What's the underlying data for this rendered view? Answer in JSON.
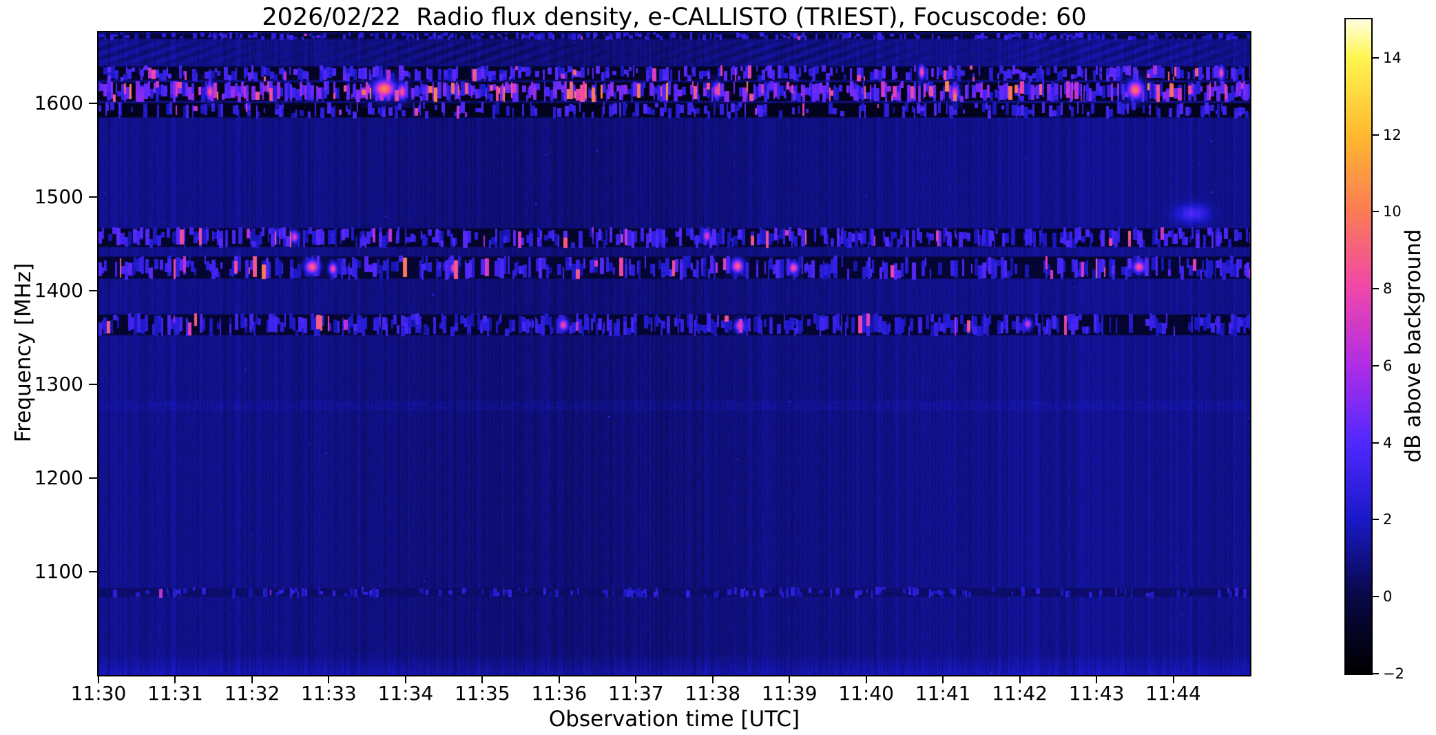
{
  "chart_data": {
    "type": "heatmap",
    "title": "2026/02/22  Radio flux density, e-CALLISTO (TRIEST), Focuscode: 60",
    "xlabel": "Observation time [UTC]",
    "ylabel": "Frequency [MHz]",
    "x_ticks": [
      "11:30",
      "11:31",
      "11:32",
      "11:33",
      "11:34",
      "11:35",
      "11:36",
      "11:37",
      "11:38",
      "11:39",
      "11:40",
      "11:41",
      "11:42",
      "11:43",
      "11:44"
    ],
    "x_range_minutes": 15,
    "x_start": "11:30",
    "x_end": "11:45",
    "y_ticks": [
      1600,
      1500,
      1400,
      1300,
      1200,
      1100
    ],
    "ylim": [
      990,
      1676
    ],
    "grid": false,
    "background_value_db": 1.0,
    "background_color": "#0c0c96",
    "colorbar": {
      "label": "dB above background",
      "ticks": [
        14,
        12,
        10,
        8,
        6,
        4,
        2,
        0,
        -2
      ],
      "range": [
        -2,
        15
      ],
      "position": "right",
      "gradient": [
        {
          "value": -2,
          "color": "#000000"
        },
        {
          "value": 0,
          "color": "#080846"
        },
        {
          "value": 2,
          "color": "#1919c8"
        },
        {
          "value": 4,
          "color": "#5028ff"
        },
        {
          "value": 6,
          "color": "#af2de6"
        },
        {
          "value": 8,
          "color": "#f046aa"
        },
        {
          "value": 10,
          "color": "#fb7b55"
        },
        {
          "value": 12,
          "color": "#feb92d"
        },
        {
          "value": 14,
          "color": "#fff550"
        },
        {
          "value": 15,
          "color": "#ffffdf"
        }
      ]
    },
    "rfi_bands": [
      {
        "name": "top-edge-speckle",
        "f_lo": 1668,
        "f_hi": 1676,
        "style": "rfi",
        "base": -0.9,
        "dash_p": 0.4,
        "dash_v": [
          1.5,
          3.5
        ],
        "pink_p": 0.005,
        "pink_v": [
          5,
          7
        ]
      },
      {
        "name": "moire-1650",
        "f_lo": 1641,
        "f_hi": 1668,
        "style": "moire",
        "amp": 0.42
      },
      {
        "name": "rfi-1632",
        "f_lo": 1624,
        "f_hi": 1641,
        "style": "rfi",
        "base": -1.3,
        "dash_p": 0.5,
        "dash_v": [
          1.8,
          4.5
        ],
        "pink_p": 0.03,
        "pink_v": [
          6,
          9.5
        ]
      },
      {
        "name": "rfi-1613",
        "f_lo": 1602,
        "f_hi": 1624,
        "style": "rfi",
        "base": -1.7,
        "dash_p": 0.78,
        "dash_v": [
          2.0,
          5.5
        ],
        "pink_p": 0.05,
        "pink_v": [
          6.5,
          10.5
        ]
      },
      {
        "name": "rfi-1593",
        "f_lo": 1584,
        "f_hi": 1602,
        "style": "rfi",
        "base": -1.6,
        "dash_p": 0.34,
        "dash_v": [
          1.5,
          4.0
        ],
        "pink_p": 0.01,
        "pink_v": [
          5.5,
          8
        ]
      },
      {
        "name": "rfi-1457",
        "f_lo": 1446,
        "f_hi": 1468,
        "style": "rfi",
        "base": -1.2,
        "dash_p": 0.55,
        "dash_v": [
          1.5,
          4.2
        ],
        "pink_p": 0.02,
        "pink_v": [
          6,
          9
        ]
      },
      {
        "name": "rfi-1425",
        "f_lo": 1412,
        "f_hi": 1438,
        "style": "rfi",
        "base": -1.0,
        "dash_p": 0.52,
        "dash_v": [
          1.5,
          4.2
        ],
        "pink_p": 0.03,
        "pink_v": [
          6.5,
          10
        ]
      },
      {
        "name": "rfi-1364",
        "f_lo": 1352,
        "f_hi": 1376,
        "style": "rfi",
        "base": -1.1,
        "dash_p": 0.5,
        "dash_v": [
          1.5,
          3.8
        ],
        "pink_p": 0.015,
        "pink_v": [
          6,
          9
        ]
      },
      {
        "name": "faint-trace-1278",
        "f_lo": 1272,
        "f_hi": 1283,
        "style": "faint",
        "boost": 0.38
      },
      {
        "name": "adsb-1078",
        "f_lo": 1072,
        "f_hi": 1084,
        "style": "rfi",
        "base": 0.1,
        "dash_p": 0.2,
        "dash_v": [
          1.5,
          3.2
        ],
        "pink_p": 0.003,
        "pink_v": [
          5,
          7
        ]
      },
      {
        "name": "bottom-noise",
        "f_lo": 990,
        "f_hi": 1014,
        "style": "bottom",
        "boost": 0.8
      }
    ],
    "hotspots": [
      {
        "t_min": 1.45,
        "f": 1613,
        "sx": 4,
        "sy": 8,
        "v": 9.0
      },
      {
        "t_min": 3.72,
        "f": 1616,
        "sx": 11,
        "sy": 9,
        "v": 10.2
      },
      {
        "t_min": 3.95,
        "f": 1613,
        "sx": 5,
        "sy": 8,
        "v": 8.6
      },
      {
        "t_min": 8.05,
        "f": 1614,
        "sx": 4,
        "sy": 8,
        "v": 8.4
      },
      {
        "t_min": 10.72,
        "f": 1634,
        "sx": 3,
        "sy": 7,
        "v": 8.8
      },
      {
        "t_min": 11.15,
        "f": 1612,
        "sx": 4,
        "sy": 8,
        "v": 8.2
      },
      {
        "t_min": 13.5,
        "f": 1615,
        "sx": 8,
        "sy": 9,
        "v": 9.6
      },
      {
        "t_min": 14.62,
        "f": 1633,
        "sx": 3,
        "sy": 7,
        "v": 8.6
      },
      {
        "t_min": 2.78,
        "f": 1426,
        "sx": 7,
        "sy": 7,
        "v": 9.2
      },
      {
        "t_min": 3.05,
        "f": 1424,
        "sx": 4,
        "sy": 6,
        "v": 8.5
      },
      {
        "t_min": 4.62,
        "f": 1425,
        "sx": 4,
        "sy": 6,
        "v": 8.2
      },
      {
        "t_min": 8.32,
        "f": 1427,
        "sx": 6,
        "sy": 7,
        "v": 9.0
      },
      {
        "t_min": 9.05,
        "f": 1425,
        "sx": 5,
        "sy": 6,
        "v": 8.6
      },
      {
        "t_min": 13.55,
        "f": 1426,
        "sx": 6,
        "sy": 6,
        "v": 8.8
      },
      {
        "t_min": 2.55,
        "f": 1458,
        "sx": 4,
        "sy": 6,
        "v": 7.6
      },
      {
        "t_min": 7.92,
        "f": 1459,
        "sx": 4,
        "sy": 6,
        "v": 7.8
      },
      {
        "t_min": 6.05,
        "f": 1364,
        "sx": 5,
        "sy": 6,
        "v": 8.0
      },
      {
        "t_min": 8.35,
        "f": 1363,
        "sx": 5,
        "sy": 6,
        "v": 8.0
      },
      {
        "t_min": 12.1,
        "f": 1365,
        "sx": 4,
        "sy": 5,
        "v": 7.4
      },
      {
        "t_min": 14.25,
        "f": 1483,
        "sx": 16,
        "sy": 9,
        "v": 2.6,
        "soft": true
      }
    ]
  },
  "layout_colors": {
    "axis": "#000000",
    "figure_background": "#ffffff"
  }
}
